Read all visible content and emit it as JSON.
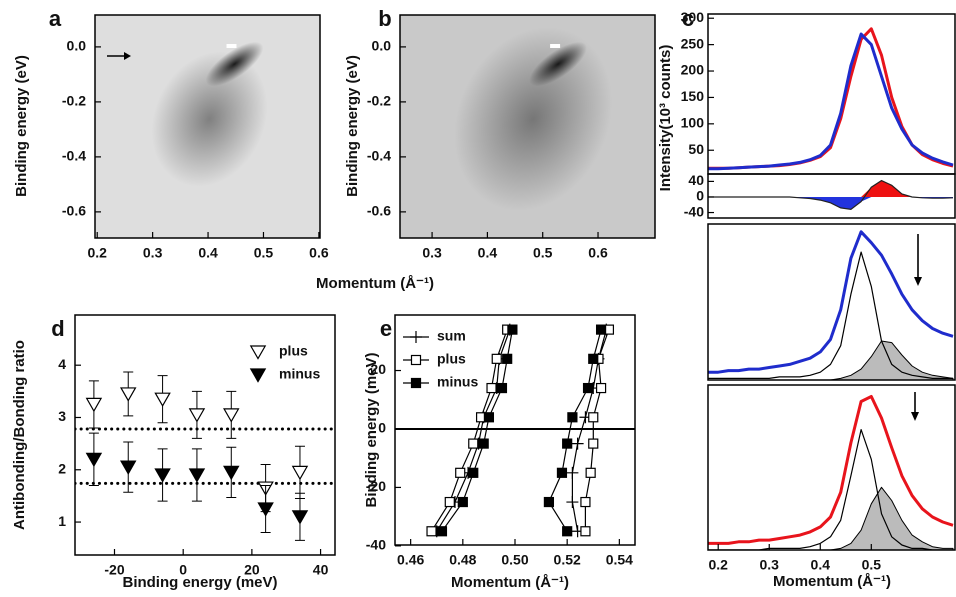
{
  "chart_data": [
    {
      "type": "image",
      "label": "a",
      "xlim": [
        0.196,
        0.602
      ],
      "ylim": [
        -0.695,
        0.116
      ],
      "xticks": [
        0.2,
        0.3,
        0.4,
        0.5,
        0.6
      ],
      "yticks": [
        {
          "value": 0,
          "label": "0.0"
        },
        -0.2,
        -0.4,
        -0.6
      ],
      "ylabel": "Binding energy (eV)"
    },
    {
      "type": "image",
      "label": "b",
      "xlim": [
        0.242,
        0.703
      ],
      "ylim": [
        -0.695,
        0.116
      ],
      "xticks": [
        0.3,
        0.4,
        0.5,
        0.6
      ],
      "yticks": [
        {
          "value": 0,
          "label": "0.0"
        },
        -0.2,
        -0.4,
        -0.6
      ],
      "ylabel": "Binding energy (eV)",
      "xlabel": "Momentum (Å⁻¹)"
    },
    {
      "type": "line",
      "label": "c",
      "ylabel": "Intensity(10³ counts)",
      "xlim": [
        0.18,
        0.664
      ],
      "ylim": [
        5,
        308
      ],
      "yticks": [
        50,
        100,
        150,
        200,
        250,
        300
      ],
      "x": [
        0.18,
        0.2,
        0.22,
        0.24,
        0.26,
        0.28,
        0.3,
        0.32,
        0.34,
        0.36,
        0.38,
        0.4,
        0.42,
        0.44,
        0.46,
        0.48,
        0.5,
        0.52,
        0.54,
        0.56,
        0.58,
        0.6,
        0.62,
        0.64,
        0.66
      ],
      "series": [
        {
          "color": "#e8141c",
          "values": [
            16,
            16,
            16,
            17,
            18,
            19,
            20,
            21,
            23,
            26,
            31,
            38,
            55,
            110,
            190,
            260,
            280,
            230,
            150,
            95,
            60,
            42,
            32,
            25,
            20
          ]
        },
        {
          "color": "#1f2ccc",
          "values": [
            15,
            15,
            16,
            17,
            18,
            19,
            20,
            22,
            24,
            27,
            32,
            40,
            60,
            120,
            210,
            270,
            250,
            190,
            130,
            90,
            60,
            45,
            35,
            28,
            22
          ]
        }
      ]
    },
    {
      "type": "area",
      "xlim": [
        0.18,
        0.664
      ],
      "ylim": [
        -54,
        59
      ],
      "yticks": [
        40,
        0,
        -40
      ],
      "x": [
        0.18,
        0.2,
        0.22,
        0.24,
        0.26,
        0.28,
        0.3,
        0.32,
        0.34,
        0.36,
        0.38,
        0.4,
        0.42,
        0.44,
        0.46,
        0.48,
        0.5,
        0.52,
        0.54,
        0.56,
        0.58,
        0.6,
        0.62,
        0.64,
        0.66
      ],
      "series": [
        {
          "color": "#222222",
          "fill_above": "#ee1111",
          "fill_below": "#2233dd",
          "values": [
            0,
            0,
            0,
            0,
            0,
            0,
            0,
            0,
            0,
            -2,
            -4,
            -8,
            -15,
            -28,
            -32,
            -12,
            25,
            42,
            30,
            8,
            0,
            -2,
            -3,
            -3,
            -2
          ]
        }
      ]
    },
    {
      "type": "line",
      "xlim": [
        0.18,
        0.664
      ],
      "ylim": [
        0,
        100
      ],
      "x": [
        0.18,
        0.2,
        0.22,
        0.24,
        0.26,
        0.28,
        0.3,
        0.32,
        0.34,
        0.36,
        0.38,
        0.4,
        0.42,
        0.44,
        0.46,
        0.48,
        0.5,
        0.52,
        0.54,
        0.56,
        0.58,
        0.6,
        0.62,
        0.64,
        0.66
      ],
      "series": [
        {
          "color": "#bbbbbb",
          "fill": true,
          "values": [
            0,
            0,
            0,
            0,
            0,
            0,
            0,
            0,
            0,
            0,
            0,
            0,
            0,
            1,
            3,
            7,
            15,
            25,
            24,
            16,
            9,
            5,
            3,
            2,
            1
          ]
        },
        {
          "color": "#000000",
          "values": [
            1,
            1,
            1,
            1,
            1,
            1,
            1,
            2,
            2,
            2,
            3,
            5,
            10,
            22,
            55,
            82,
            60,
            25,
            10,
            5,
            3,
            2,
            1,
            1,
            1
          ]
        },
        {
          "color": "#1f2ccc",
          "values": [
            5,
            5,
            6,
            6,
            7,
            7,
            8,
            9,
            10,
            12,
            14,
            18,
            26,
            45,
            78,
            95,
            88,
            80,
            68,
            55,
            45,
            38,
            33,
            30,
            28
          ]
        }
      ]
    },
    {
      "type": "line",
      "xlim": [
        0.18,
        0.664
      ],
      "ylim": [
        0,
        100
      ],
      "xticks": [
        0.2,
        0.3,
        0.4,
        0.5
      ],
      "xlabel": "Momentum (Å⁻¹)",
      "x": [
        0.18,
        0.2,
        0.22,
        0.24,
        0.26,
        0.28,
        0.3,
        0.32,
        0.34,
        0.36,
        0.38,
        0.4,
        0.42,
        0.44,
        0.46,
        0.48,
        0.5,
        0.52,
        0.54,
        0.56,
        0.58,
        0.6,
        0.62,
        0.64,
        0.66
      ],
      "series": [
        {
          "color": "#bbbbbb",
          "fill": true,
          "values": [
            0,
            0,
            0,
            0,
            0,
            0,
            0,
            0,
            0,
            0,
            0,
            0,
            0,
            1,
            4,
            12,
            28,
            38,
            30,
            18,
            9,
            5,
            2,
            1,
            1
          ]
        },
        {
          "color": "#000000",
          "values": [
            0,
            0,
            0,
            0,
            0,
            0,
            1,
            1,
            1,
            1,
            2,
            4,
            8,
            18,
            45,
            73,
            55,
            22,
            8,
            3,
            1,
            1,
            0,
            0,
            0
          ]
        },
        {
          "color": "#e8141c",
          "values": [
            4,
            4,
            4,
            5,
            5,
            6,
            6,
            7,
            8,
            9,
            11,
            14,
            20,
            35,
            65,
            90,
            93,
            80,
            62,
            45,
            33,
            25,
            20,
            17,
            15
          ]
        }
      ]
    },
    {
      "type": "errorbar",
      "label": "d",
      "xlabel": "Binding energy (meV)",
      "ylabel": "Antibonding/Bonding ratio",
      "xlim": [
        -31.5,
        44.2
      ],
      "ylim": [
        0.37,
        4.96
      ],
      "xticks": [
        -20,
        0,
        20,
        40
      ],
      "yticks": [
        1,
        2,
        3,
        4
      ],
      "legend": "upper right",
      "hlines": [
        2.78,
        1.74
      ],
      "hline_style": "dotted",
      "x": [
        -26,
        -16,
        -6,
        4,
        14,
        24,
        34
      ],
      "series": [
        {
          "name": "plus",
          "marker": "triangle-down-open",
          "values": [
            3.25,
            3.45,
            3.35,
            3.05,
            3.05,
            1.65,
            1.95
          ],
          "errors": [
            0.45,
            0.42,
            0.45,
            0.45,
            0.45,
            0.45,
            0.5
          ]
        },
        {
          "name": "minus",
          "marker": "triangle-down",
          "values": [
            2.2,
            2.05,
            1.9,
            1.9,
            1.95,
            1.25,
            1.1
          ],
          "errors": [
            0.5,
            0.48,
            0.5,
            0.5,
            0.48,
            0.45,
            0.45
          ]
        }
      ]
    },
    {
      "type": "scatterline",
      "label": "e",
      "xlabel": "Momentum (Å⁻¹)",
      "ylabel": "Binding energy (meV)",
      "xlim": [
        0.454,
        0.546
      ],
      "ylim": [
        -39.7,
        39
      ],
      "xticks": [
        0.46,
        0.48,
        {
          "value": 0.5,
          "label": "0.50"
        },
        0.52,
        0.54
      ],
      "yticks": [
        20,
        0,
        -20,
        -40
      ],
      "legend": "upper left",
      "hlines": [
        0
      ],
      "hline_style": "solid",
      "series": [
        {
          "name": "sum",
          "marker": "plus",
          "x": [
            0.498,
            0.494,
            0.493,
            0.488,
            0.486,
            0.482,
            0.477,
            0.47,
            null,
            0.535,
            0.532,
            0.53,
            0.527,
            0.524,
            0.522,
            0.522,
            0.524
          ],
          "y": [
            34,
            24,
            14,
            4,
            -5,
            -15,
            -25,
            -35,
            null,
            34,
            24,
            14,
            4,
            -5,
            -15,
            -25,
            -35
          ]
        },
        {
          "name": "plus",
          "marker": "open-square",
          "x": [
            0.497,
            0.493,
            0.491,
            0.487,
            0.484,
            0.479,
            0.475,
            0.468,
            null,
            0.536,
            0.532,
            0.533,
            0.53,
            0.53,
            0.529,
            0.527,
            0.527
          ],
          "y": [
            34,
            24,
            14,
            4,
            -5,
            -15,
            -25,
            -35,
            null,
            34,
            24,
            14,
            4,
            -5,
            -15,
            -25,
            -35
          ]
        },
        {
          "name": "minus",
          "marker": "filled-square",
          "x": [
            0.499,
            0.497,
            0.495,
            0.49,
            0.488,
            0.484,
            0.48,
            0.472,
            null,
            0.533,
            0.53,
            0.528,
            0.522,
            0.52,
            0.518,
            0.513,
            0.52
          ],
          "y": [
            34,
            24,
            14,
            4,
            -5,
            -15,
            -25,
            -35,
            null,
            34,
            24,
            14,
            4,
            -5,
            -15,
            -25,
            -35
          ]
        }
      ]
    }
  ]
}
